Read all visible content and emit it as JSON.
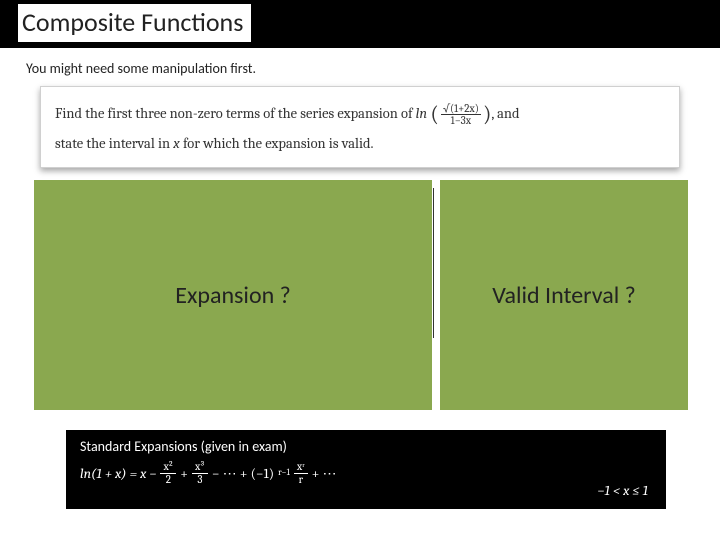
{
  "header": {
    "title": "Composite Functions"
  },
  "subtitle": "You might need some manipulation first.",
  "problem": {
    "line1_prefix": "Find the first three non-zero terms of the series expansion of ",
    "ln_label": "ln",
    "frac_num": "√(1+2x)",
    "frac_den": "1−3x",
    "line1_suffix": ", and",
    "line2_prefix": "state the interval in ",
    "var": "x",
    "line2_suffix": " for which the expansion is valid."
  },
  "panels": {
    "left_label": "Expansion ?",
    "right_label": "Valid Interval ?",
    "bg_color": "#8aa84f"
  },
  "expansions": {
    "title": "Standard Expansions (given in exam)",
    "lhs": "ln(1 + x) = x −",
    "t2_num": "x²",
    "t2_den": "2",
    "plus1": "+",
    "t3_num": "x³",
    "t3_den": "3",
    "dots1": "− ⋯ + (−1)",
    "exp_r": "r−1",
    "tr_num": "xʳ",
    "tr_den": "r",
    "dots2": "+ ⋯",
    "interval": "−1 < x ≤ 1"
  },
  "colors": {
    "black": "#000000",
    "white": "#ffffff",
    "olive": "#8aa84f",
    "text": "#222222"
  }
}
